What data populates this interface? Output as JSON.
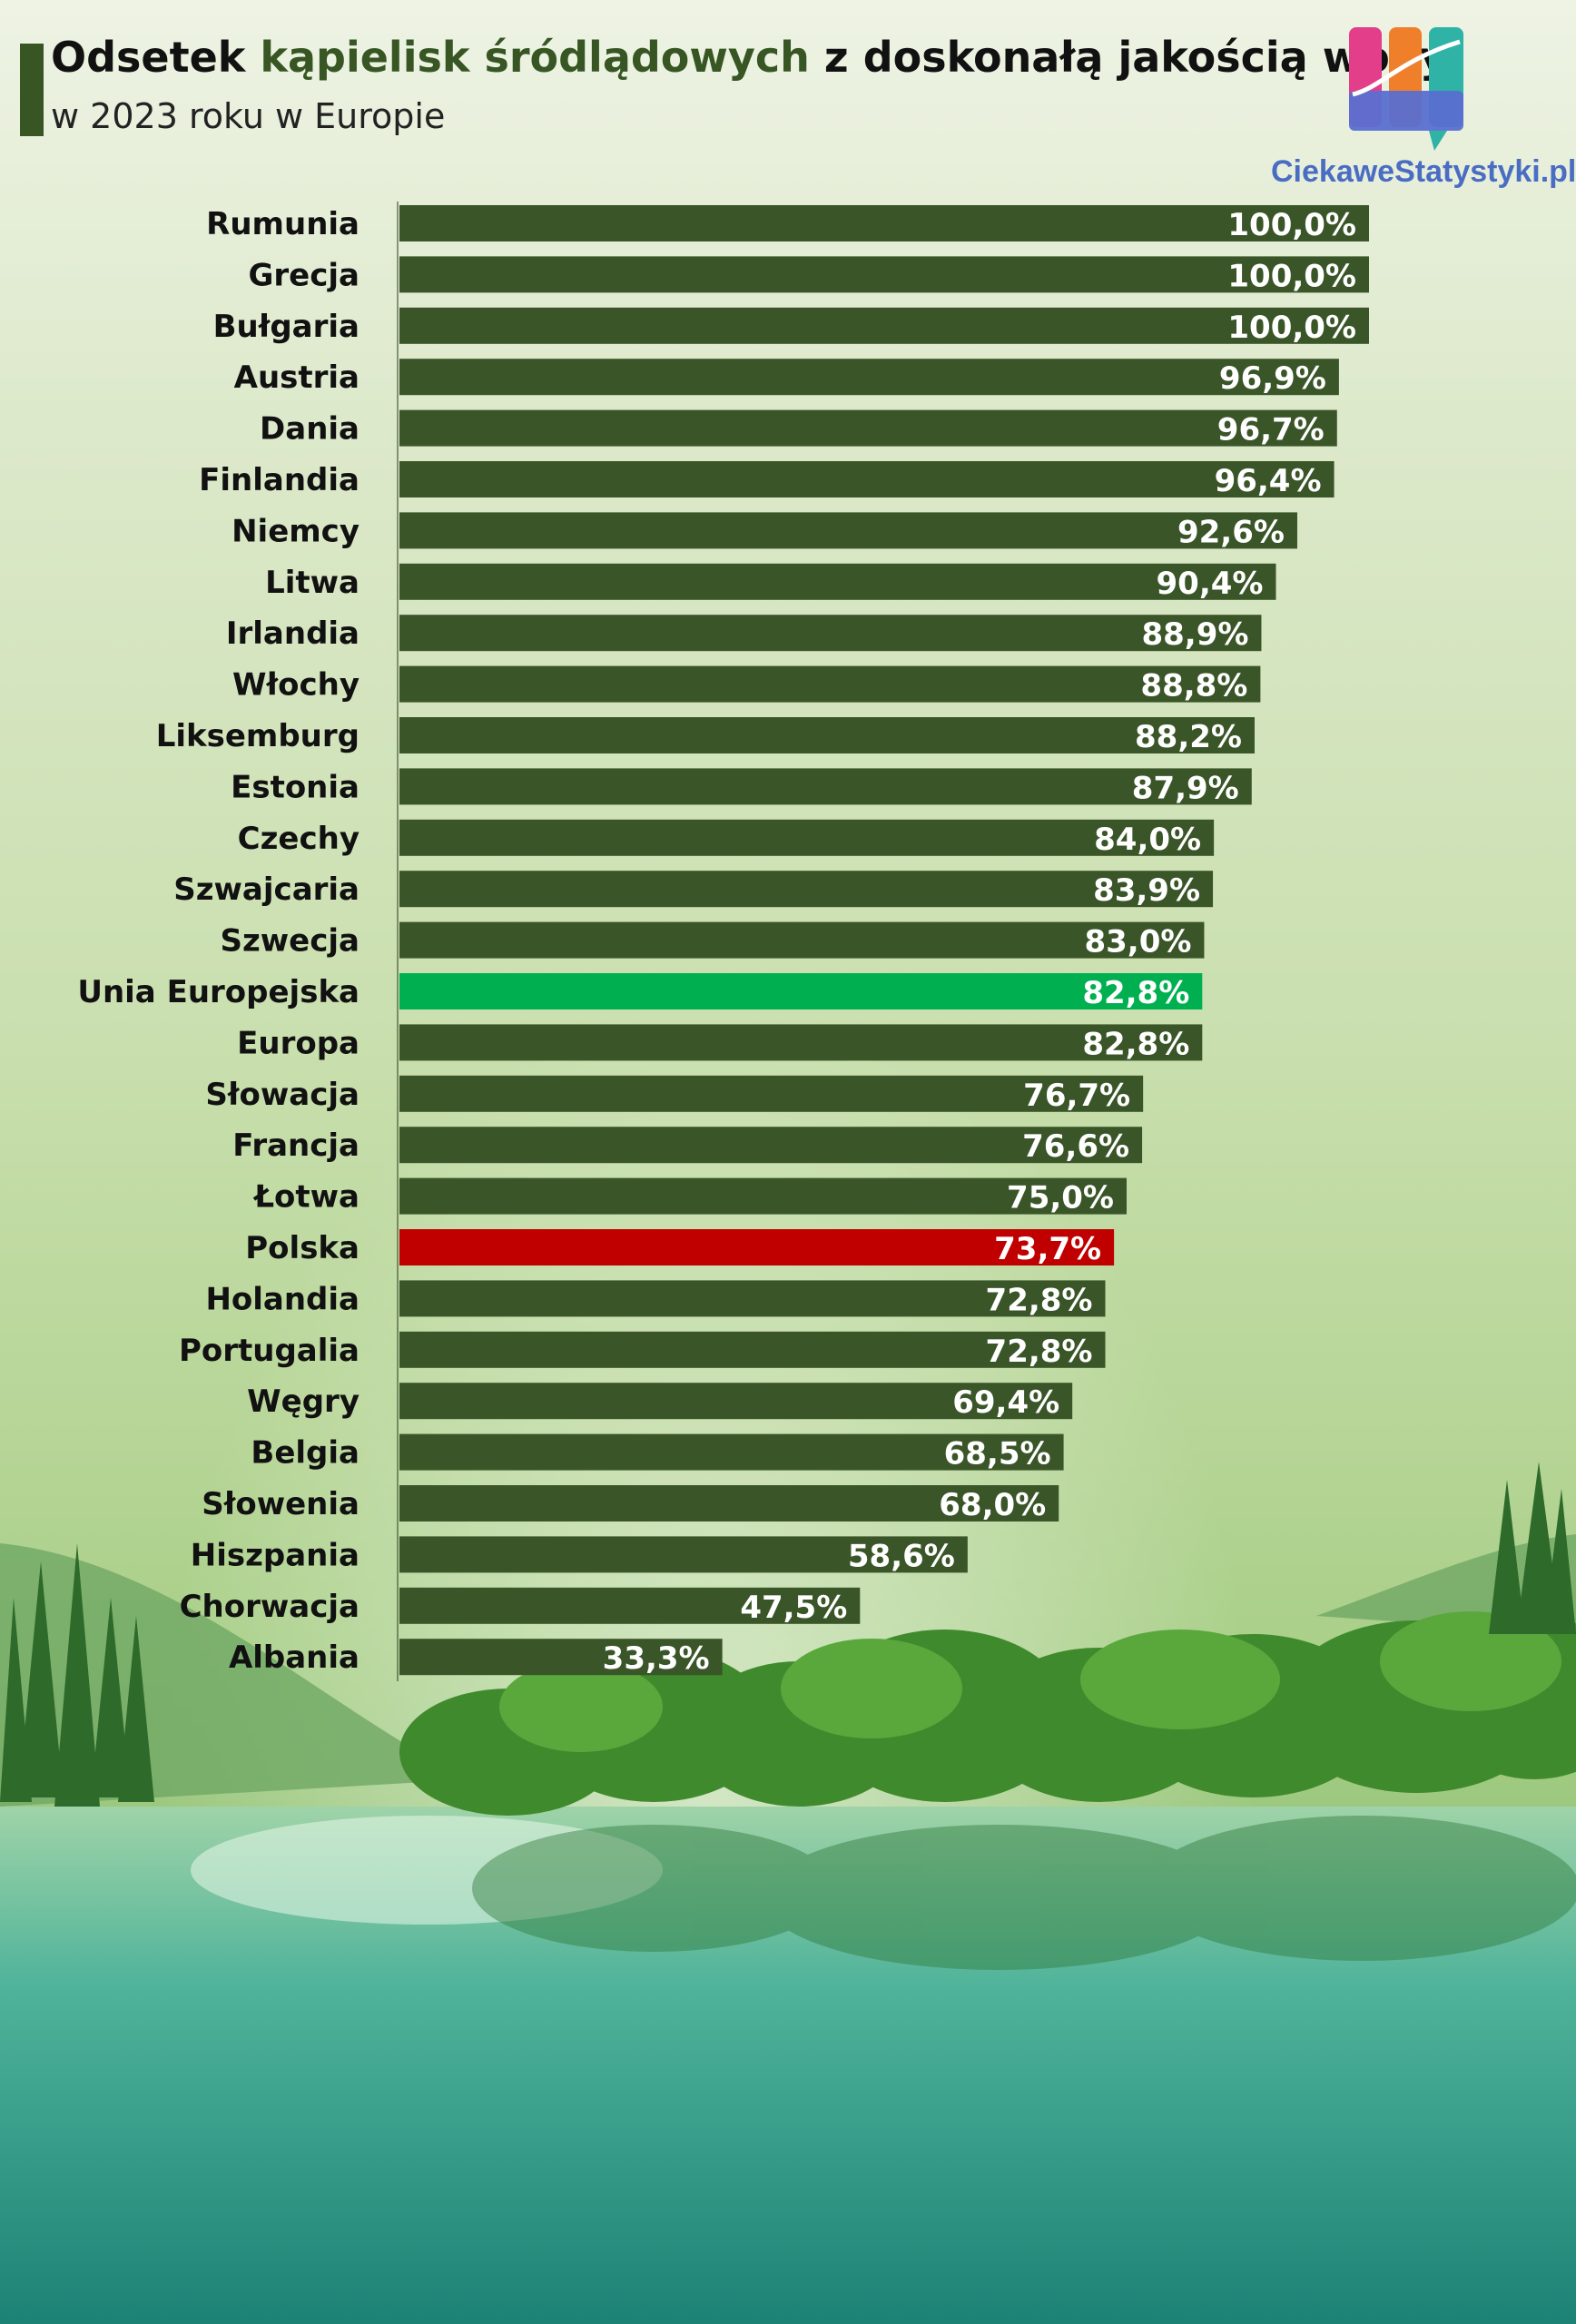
{
  "title": {
    "prefix": "Odsetek ",
    "highlight": "kąpielisk śródlądowych",
    "suffix": " z doskonałą jakością wody",
    "subtitle": "w 2023 roku w Europie"
  },
  "brand": {
    "name": "CiekaweStatystyki.pl"
  },
  "colors": {
    "accent": "#375623",
    "bar": "#3a5528",
    "eu_bar": "#00b050",
    "poland_bar": "#c00000",
    "brand": "#4a6dc4"
  },
  "chart_data": {
    "type": "bar",
    "orientation": "horizontal",
    "categories": [
      "Rumunia",
      "Grecja",
      "Bułgaria",
      "Austria",
      "Dania",
      "Finlandia",
      "Niemcy",
      "Litwa",
      "Irlandia",
      "Włochy",
      "Liksemburg",
      "Estonia",
      "Czechy",
      "Szwajcaria",
      "Szwecja",
      "Unia Europejska",
      "Europa",
      "Słowacja",
      "Francja",
      "Łotwa",
      "Polska",
      "Holandia",
      "Portugalia",
      "Węgry",
      "Belgia",
      "Słowenia",
      "Hiszpania",
      "Chorwacja",
      "Albania"
    ],
    "values": [
      100.0,
      100.0,
      100.0,
      96.9,
      96.7,
      96.4,
      92.6,
      90.4,
      88.9,
      88.8,
      88.2,
      87.9,
      84.0,
      83.9,
      83.0,
      82.8,
      82.8,
      76.7,
      76.6,
      75.0,
      73.7,
      72.8,
      72.8,
      69.4,
      68.5,
      68.0,
      58.6,
      47.5,
      33.3
    ],
    "value_labels": [
      "100,0%",
      "100,0%",
      "100,0%",
      "96,9%",
      "96,7%",
      "96,4%",
      "92,6%",
      "90,4%",
      "88,9%",
      "88,8%",
      "88,2%",
      "87,9%",
      "84,0%",
      "83,9%",
      "83,0%",
      "82,8%",
      "82,8%",
      "76,7%",
      "76,6%",
      "75,0%",
      "73,7%",
      "72,8%",
      "72,8%",
      "69,4%",
      "68,5%",
      "68,0%",
      "58,6%",
      "47,5%",
      "33,3%"
    ],
    "highlights": {
      "Unia Europejska": "eu_bar",
      "Polska": "poland_bar"
    },
    "xlim": [
      0,
      100
    ],
    "grid": false,
    "legend": "none"
  }
}
